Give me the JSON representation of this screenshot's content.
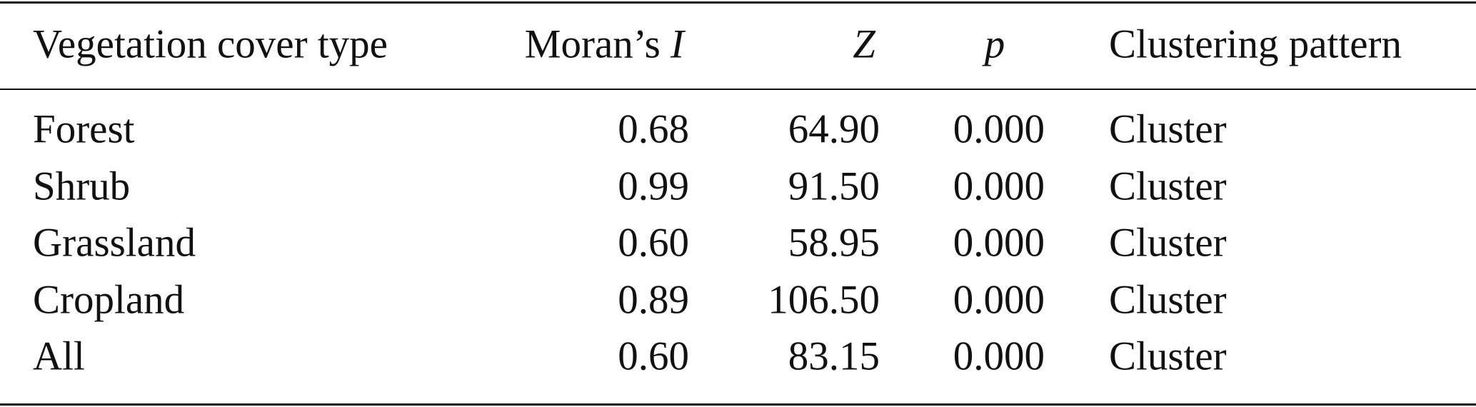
{
  "table": {
    "header": [
      "Vegetation cover type",
      [
        "Moran’s",
        "I"
      ],
      "Z",
      "p",
      "Clustering pattern"
    ],
    "rows": [
      [
        "Forest",
        "0.68",
        "64.90",
        "0.000",
        "Cluster"
      ],
      [
        "Shrub",
        "0.99",
        "91.50",
        "0.000",
        "Cluster"
      ],
      [
        "Grassland",
        "0.60",
        "58.95",
        "0.000",
        "Cluster"
      ],
      [
        "Cropland",
        "0.89",
        "106.50",
        "0.000",
        "Cluster"
      ],
      [
        "All",
        "0.60",
        "83.15",
        "0.000",
        "Cluster"
      ]
    ]
  }
}
